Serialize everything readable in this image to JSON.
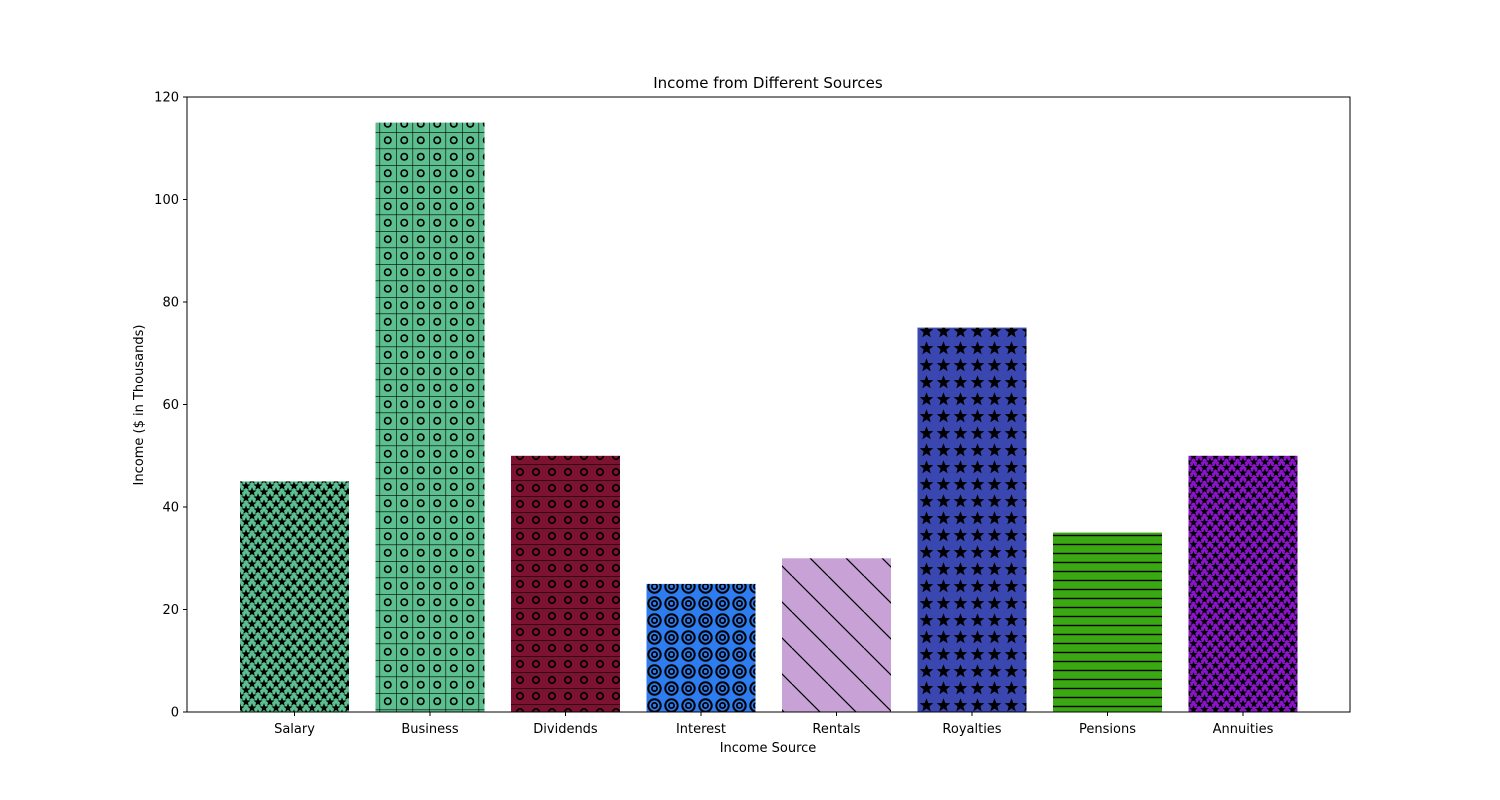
{
  "chart_data": {
    "type": "bar",
    "title": "Income from Different Sources",
    "xlabel": "Income Source",
    "ylabel": "Income ($ in Thousands)",
    "ylim": [
      0,
      120
    ],
    "yticks": [
      0,
      20,
      40,
      60,
      80,
      100,
      120
    ],
    "grid": false,
    "legend": "none",
    "categories": [
      "Salary",
      "Business",
      "Dividends",
      "Interest",
      "Rentals",
      "Royalties",
      "Pensions",
      "Annuities"
    ],
    "values": [
      45,
      115,
      50,
      25,
      30,
      75,
      35,
      50
    ],
    "colors": [
      "#5cbf8f",
      "#5cbf8f",
      "#7a1230",
      "#2e7df0",
      "#c8a2d6",
      "#3b47b0",
      "#3aa812",
      "#8a14c8"
    ],
    "hatches": [
      "stars",
      "grid-circles",
      "hlines-circles",
      "circles-rings",
      "diagonal",
      "stars-large",
      "hlines",
      "stars-small"
    ]
  }
}
